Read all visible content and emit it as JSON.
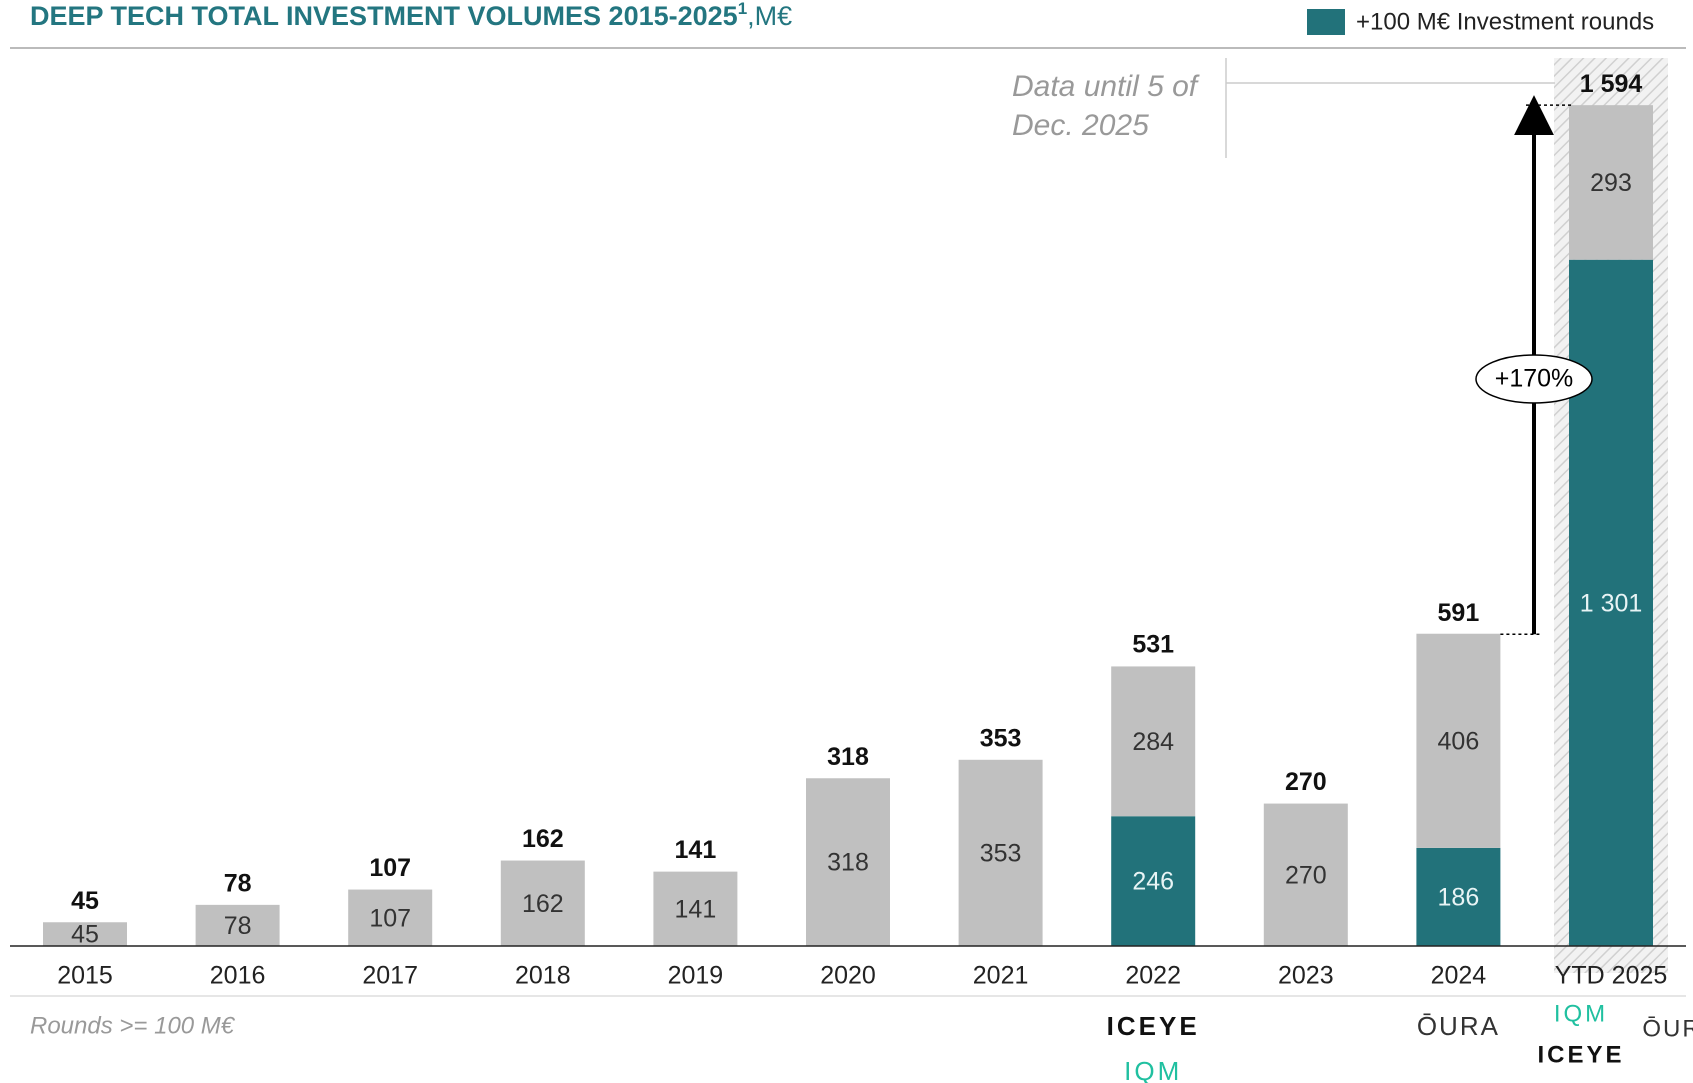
{
  "chart_data": {
    "type": "stacked_bar",
    "title": "DEEP TECH TOTAL INVESTMENT VOLUMES 2015-2025",
    "title_superscript": "1",
    "title_unit": ",M€",
    "categories": [
      "2015",
      "2016",
      "2017",
      "2018",
      "2019",
      "2020",
      "2021",
      "2022",
      "2023",
      "2024",
      "YTD 2025"
    ],
    "series": [
      {
        "name": "+100 M€ Investment rounds",
        "color": "#22727a",
        "values": [
          null,
          null,
          null,
          null,
          null,
          null,
          null,
          246,
          null,
          186,
          1301
        ],
        "value_labels": [
          null,
          null,
          null,
          null,
          null,
          null,
          null,
          "246",
          null,
          "186",
          "1 301"
        ]
      },
      {
        "color": "#c0c0c0",
        "values": [
          45,
          78,
          107,
          162,
          141,
          318,
          353,
          284,
          270,
          406,
          293
        ]
      }
    ],
    "totals": [
      45,
      78,
      107,
      162,
      141,
      318,
      353,
      531,
      270,
      591,
      1594
    ],
    "total_labels": [
      "45",
      "78",
      "107",
      "162",
      "141",
      "318",
      "353",
      "531",
      "270",
      "591",
      "1 594"
    ],
    "ylim": [
      0,
      1600
    ],
    "legend": "top-right",
    "annotations": {
      "growth": "+170%",
      "note_line1": "Data until 5 of",
      "note_line2": "Dec. 2025",
      "footer": "Rounds >= 100 M€"
    },
    "logos": {
      "2022": [
        "ICEYE",
        "IQM"
      ],
      "2024": [
        "ŌURA"
      ],
      "YTD 2025": [
        "IQM",
        "ŌURA",
        "ICEYE"
      ]
    }
  }
}
